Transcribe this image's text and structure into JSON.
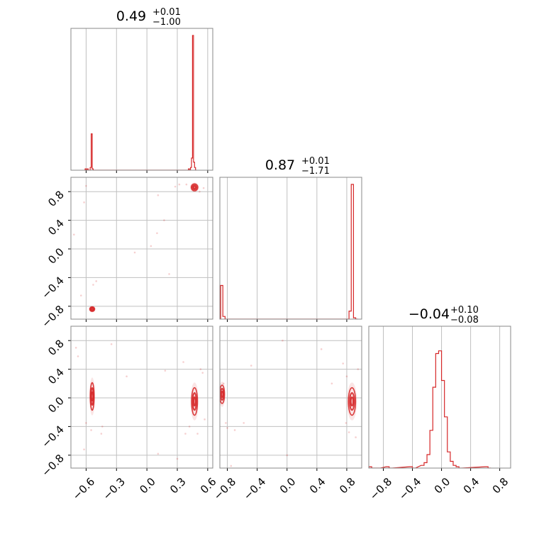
{
  "chart_data": {
    "type": "corner",
    "colors": {
      "series": "#d62728",
      "grid": "#c0c0c0",
      "frame": "#888888"
    },
    "grid": true,
    "panels": [
      {
        "id": "hist-p1",
        "kind": "histogram",
        "title": {
          "value": "0.49",
          "plus": "+0.01",
          "minus": "−1.00"
        },
        "x_range": [
          -0.75,
          0.65
        ],
        "bins": [
          [
            -0.62,
            0.0
          ],
          [
            -0.61,
            0.01
          ],
          [
            -0.6,
            0.0
          ],
          [
            -0.59,
            0.01
          ],
          [
            -0.58,
            0.0
          ],
          [
            -0.57,
            0.0
          ],
          [
            -0.56,
            0.02
          ],
          [
            -0.55,
            0.27
          ],
          [
            -0.54,
            0.01
          ],
          [
            -0.53,
            0.0
          ],
          [
            0.4,
            0.0
          ],
          [
            0.41,
            0.01
          ],
          [
            0.42,
            0.0
          ],
          [
            0.43,
            0.02
          ],
          [
            0.44,
            0.09
          ],
          [
            0.45,
            1.0
          ],
          [
            0.46,
            0.06
          ],
          [
            0.47,
            0.02
          ],
          [
            0.48,
            0.0
          ]
        ]
      },
      {
        "id": "scatter-p2-p1",
        "kind": "2d",
        "x_range": [
          -0.75,
          0.65
        ],
        "y_range": [
          -0.98,
          1.0
        ],
        "clusters": [
          {
            "cx": 0.47,
            "cy": 0.86,
            "rx": 0.02,
            "ry": 0.03
          },
          {
            "cx": -0.54,
            "cy": -0.84,
            "rx": 0.015,
            "ry": 0.02
          }
        ],
        "scatter": [
          [
            0.39,
            0.9
          ],
          [
            0.28,
            0.87
          ],
          [
            0.32,
            0.9
          ],
          [
            0.45,
            0.88
          ],
          [
            0.52,
            0.8
          ],
          [
            0.56,
            0.85
          ],
          [
            0.11,
            0.75
          ],
          [
            0.17,
            0.4
          ],
          [
            0.04,
            0.04
          ],
          [
            -0.12,
            -0.05
          ],
          [
            -0.6,
            0.88
          ],
          [
            -0.62,
            0.65
          ],
          [
            -0.65,
            -0.65
          ],
          [
            -0.5,
            -0.45
          ],
          [
            -0.53,
            -0.5
          ],
          [
            0.22,
            -0.35
          ],
          [
            0.1,
            0.22
          ],
          [
            -0.72,
            0.2
          ]
        ]
      },
      {
        "id": "hist-p2",
        "kind": "histogram",
        "title": {
          "value": "0.87",
          "plus": "+0.01",
          "minus": "−1.71"
        },
        "x_range": [
          -0.9,
          1.0
        ],
        "bins": [
          [
            -0.89,
            0.25
          ],
          [
            -0.86,
            0.02
          ],
          [
            -0.83,
            0.0
          ],
          [
            0.8,
            0.0
          ],
          [
            0.83,
            0.06
          ],
          [
            0.86,
            1.0
          ],
          [
            0.89,
            0.01
          ],
          [
            0.92,
            0.0
          ]
        ]
      },
      {
        "id": "scatter-p3-p1",
        "kind": "2d",
        "x_range": [
          -0.75,
          0.65
        ],
        "y_range": [
          -0.98,
          1.0
        ],
        "clusters": [
          {
            "cx": -0.54,
            "cy": 0.02,
            "rx": 0.012,
            "ry": 0.12
          },
          {
            "cx": 0.47,
            "cy": -0.05,
            "rx": 0.018,
            "ry": 0.12
          }
        ],
        "scatter": [
          [
            -0.7,
            0.7
          ],
          [
            -0.68,
            0.58
          ],
          [
            -0.45,
            -0.5
          ],
          [
            -0.44,
            -0.4
          ],
          [
            -0.35,
            0.75
          ],
          [
            -0.55,
            -0.45
          ],
          [
            -0.6,
            -0.35
          ],
          [
            -0.2,
            0.3
          ],
          [
            0.11,
            -0.78
          ],
          [
            0.18,
            0.38
          ],
          [
            0.36,
            0.5
          ],
          [
            0.38,
            -0.5
          ],
          [
            0.42,
            -0.4
          ],
          [
            0.5,
            -0.5
          ],
          [
            0.53,
            0.4
          ],
          [
            0.55,
            0.35
          ],
          [
            0.57,
            -0.3
          ],
          [
            -0.62,
            -0.72
          ],
          [
            0.3,
            -0.85
          ],
          [
            -0.05,
            -1.0
          ]
        ]
      },
      {
        "id": "scatter-p3-p2",
        "kind": "2d",
        "x_range": [
          -0.9,
          1.0
        ],
        "y_range": [
          -0.98,
          1.0
        ],
        "clusters": [
          {
            "cx": 0.87,
            "cy": -0.05,
            "rx": 0.03,
            "ry": 0.12
          },
          {
            "cx": -0.87,
            "cy": 0.05,
            "rx": 0.02,
            "ry": 0.08
          }
        ],
        "scatter": [
          [
            -0.85,
            0.2
          ],
          [
            -0.82,
            -0.35
          ],
          [
            -0.8,
            -0.42
          ],
          [
            -0.7,
            -0.45
          ],
          [
            -0.58,
            -0.35
          ],
          [
            -0.48,
            0.45
          ],
          [
            -0.06,
            0.8
          ],
          [
            0.0,
            -0.8
          ],
          [
            0.46,
            0.68
          ],
          [
            0.6,
            0.2
          ],
          [
            0.75,
            0.48
          ],
          [
            0.8,
            0.3
          ],
          [
            0.79,
            -0.35
          ],
          [
            0.83,
            -0.48
          ],
          [
            0.92,
            -0.55
          ],
          [
            0.95,
            0.4
          ],
          [
            -0.75,
            -0.95
          ],
          [
            0.3,
            -1.0
          ]
        ]
      },
      {
        "id": "hist-p3",
        "kind": "histogram",
        "title": {
          "value": "−0.04",
          "plus": "+0.10",
          "minus": "−0.08"
        },
        "x_range": [
          -1.0,
          0.95
        ],
        "bins": [
          [
            -1.0,
            0.01
          ],
          [
            -0.96,
            0.0
          ],
          [
            -0.92,
            0.0
          ],
          [
            -0.88,
            0.0
          ],
          [
            -0.76,
            0.01
          ],
          [
            -0.72,
            0.0
          ],
          [
            -0.44,
            0.01
          ],
          [
            -0.4,
            0.0
          ],
          [
            -0.28,
            0.02
          ],
          [
            -0.24,
            0.04
          ],
          [
            -0.2,
            0.1
          ],
          [
            -0.16,
            0.28
          ],
          [
            -0.12,
            0.6
          ],
          [
            -0.08,
            0.85
          ],
          [
            -0.04,
            0.87
          ],
          [
            0.0,
            0.65
          ],
          [
            0.04,
            0.38
          ],
          [
            0.08,
            0.12
          ],
          [
            0.12,
            0.05
          ],
          [
            0.16,
            0.02
          ],
          [
            0.2,
            0.01
          ],
          [
            0.24,
            0.0
          ],
          [
            0.6,
            0.01
          ],
          [
            0.64,
            0.0
          ]
        ]
      }
    ],
    "x_ticks": [
      {
        "values": [
          -0.6,
          -0.3,
          0.0,
          0.3,
          0.6
        ],
        "labels": [
          "−0.6",
          "−0.3",
          "0.0",
          "0.3",
          "0.6"
        ]
      },
      {
        "values": [
          -0.8,
          -0.4,
          0.0,
          0.4,
          0.8
        ],
        "labels": [
          "−0.8",
          "−0.4",
          "0.0",
          "0.4",
          "0.8"
        ]
      },
      {
        "values": [
          -0.8,
          -0.4,
          0.0,
          0.4,
          0.8
        ],
        "labels": [
          "−0.8",
          "−0.4",
          "0.0",
          "0.4",
          "0.8"
        ]
      }
    ],
    "y_ticks": [
      {
        "values": [
          -0.8,
          -0.4,
          0.0,
          0.4,
          0.8
        ],
        "labels": [
          "−0.8",
          "−0.4",
          "0.0",
          "0.4",
          "0.8"
        ]
      },
      {
        "values": [
          -0.8,
          -0.4,
          0.0,
          0.4,
          0.8
        ],
        "labels": [
          "−0.8",
          "−0.4",
          "0.0",
          "0.4",
          "0.8"
        ]
      }
    ]
  }
}
